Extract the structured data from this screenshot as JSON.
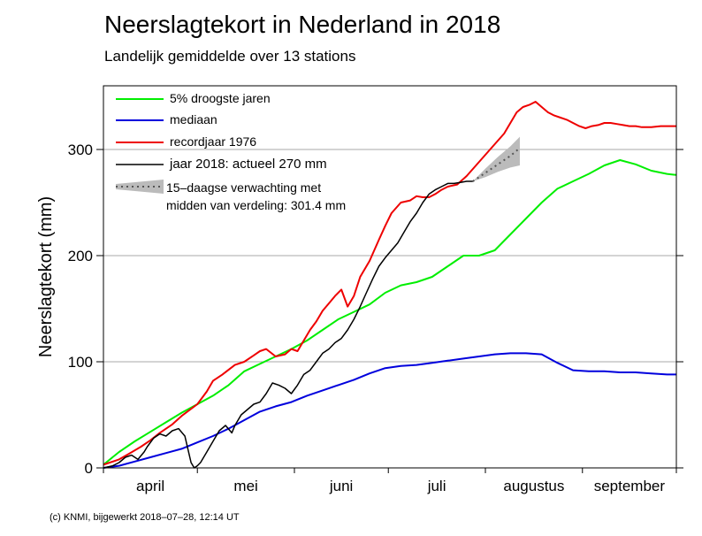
{
  "chart_data": {
    "type": "line",
    "title": "Neerslagtekort in Nederland in 2018",
    "subtitle": "Landelijk gemiddelde over 13 stations",
    "ylabel": "Neerslagtekort (mm)",
    "xlabel": "",
    "ylim": [
      0,
      360
    ],
    "xlim": [
      0,
      183
    ],
    "y_ticks": [
      0,
      100,
      200,
      300
    ],
    "y_tick_labels": [
      "0",
      "100",
      "200",
      "300"
    ],
    "x_month_boundaries": [
      0,
      30,
      61,
      91,
      122,
      153,
      183
    ],
    "x_tick_labels": [
      "april",
      "mei",
      "juni",
      "juli",
      "augustus",
      "september"
    ],
    "grid": "horizontal",
    "legend_position": "top-left",
    "credit": "(c) KNMI, bijgewerkt 2018–07–28, 12:14 UT",
    "series": [
      {
        "name": "5% droogste jaren",
        "color": "#00ee00",
        "x": [
          0,
          5,
          10,
          15,
          20,
          25,
          30,
          35,
          40,
          45,
          50,
          55,
          60,
          65,
          70,
          75,
          80,
          85,
          90,
          95,
          100,
          105,
          110,
          115,
          120,
          125,
          130,
          135,
          140,
          145,
          150,
          155,
          160,
          165,
          170,
          175,
          180,
          183
        ],
        "y": [
          3,
          15,
          25,
          34,
          43,
          52,
          60,
          68,
          78,
          91,
          98,
          105,
          112,
          120,
          130,
          140,
          147,
          154,
          165,
          172,
          175,
          180,
          190,
          200,
          200,
          205,
          220,
          235,
          250,
          263,
          270,
          277,
          285,
          290,
          286,
          280,
          277,
          276
        ]
      },
      {
        "name": "mediaan",
        "color": "#0000dd",
        "x": [
          0,
          5,
          10,
          15,
          20,
          25,
          30,
          35,
          40,
          45,
          50,
          55,
          60,
          65,
          70,
          75,
          80,
          85,
          90,
          95,
          100,
          105,
          110,
          115,
          120,
          125,
          130,
          135,
          140,
          145,
          150,
          155,
          160,
          165,
          170,
          175,
          180,
          183
        ],
        "y": [
          0,
          2,
          6,
          10,
          14,
          18,
          24,
          30,
          37,
          45,
          53,
          58,
          62,
          68,
          73,
          78,
          83,
          89,
          94,
          96,
          97,
          99,
          101,
          103,
          105,
          107,
          108,
          108,
          107,
          99,
          92,
          91,
          91,
          90,
          90,
          89,
          88,
          88
        ]
      },
      {
        "name": "recordjaar 1976",
        "color": "#ee0000",
        "x": [
          0,
          5,
          8,
          12,
          15,
          18,
          22,
          25,
          30,
          33,
          35,
          38,
          42,
          45,
          48,
          50,
          52,
          55,
          58,
          60,
          62,
          64,
          66,
          68,
          70,
          72,
          74,
          76,
          78,
          80,
          82,
          85,
          88,
          90,
          92,
          95,
          98,
          100,
          102,
          104,
          106,
          108,
          110,
          113,
          116,
          119,
          122,
          125,
          128,
          130,
          132,
          134,
          136,
          138,
          140,
          142,
          144,
          146,
          148,
          150,
          152,
          154,
          156,
          158,
          160,
          162,
          164,
          166,
          168,
          170,
          172,
          175,
          178,
          180,
          183
        ],
        "y": [
          3,
          8,
          13,
          20,
          26,
          33,
          41,
          49,
          60,
          72,
          82,
          88,
          97,
          100,
          106,
          110,
          112,
          105,
          107,
          112,
          110,
          120,
          130,
          138,
          148,
          155,
          162,
          168,
          152,
          162,
          180,
          195,
          215,
          228,
          240,
          250,
          252,
          256,
          255,
          255,
          258,
          262,
          265,
          267,
          275,
          285,
          295,
          305,
          315,
          325,
          335,
          340,
          342,
          345,
          340,
          335,
          332,
          330,
          328,
          325,
          322,
          320,
          322,
          323,
          325,
          325,
          324,
          323,
          322,
          322,
          321,
          321,
          322,
          322,
          322
        ]
      },
      {
        "name": "jaar 2018: actueel 270 mm",
        "color": "#000000",
        "x": [
          0,
          3,
          5,
          7,
          9,
          11,
          13,
          14,
          16,
          18,
          20,
          22,
          24,
          26,
          28,
          29,
          30,
          31,
          33,
          35,
          37,
          39,
          41,
          42,
          44,
          46,
          48,
          50,
          52,
          54,
          56,
          58,
          60,
          62,
          64,
          66,
          68,
          70,
          72,
          74,
          76,
          78,
          80,
          82,
          84,
          86,
          88,
          90,
          92,
          94,
          96,
          98,
          100,
          102,
          104,
          106,
          108,
          110,
          112,
          114,
          116,
          118
        ],
        "y": [
          0,
          2,
          5,
          10,
          12,
          8,
          15,
          20,
          28,
          32,
          30,
          35,
          37,
          30,
          5,
          0,
          2,
          5,
          15,
          25,
          35,
          40,
          33,
          40,
          50,
          55,
          60,
          62,
          70,
          80,
          78,
          75,
          70,
          78,
          88,
          92,
          100,
          108,
          112,
          118,
          122,
          130,
          140,
          152,
          165,
          178,
          190,
          198,
          205,
          212,
          222,
          232,
          240,
          250,
          258,
          262,
          265,
          268,
          268,
          269,
          270,
          270
        ]
      }
    ],
    "forecast": {
      "name": "15–daagse verwachting met midden van verdeling: 301.4 mm",
      "legend_line1": "15–daagse verwachting met",
      "legend_line2": "midden van verdeling: 301.4 mm",
      "band_color": "#bbbbbb",
      "midline_color": "#555555",
      "x": [
        118,
        122,
        126,
        130,
        133
      ],
      "mid": [
        270,
        278,
        286,
        294,
        301.4
      ],
      "low": [
        270,
        274,
        279,
        283,
        285
      ],
      "high": [
        270,
        282,
        293,
        303,
        312
      ]
    }
  }
}
